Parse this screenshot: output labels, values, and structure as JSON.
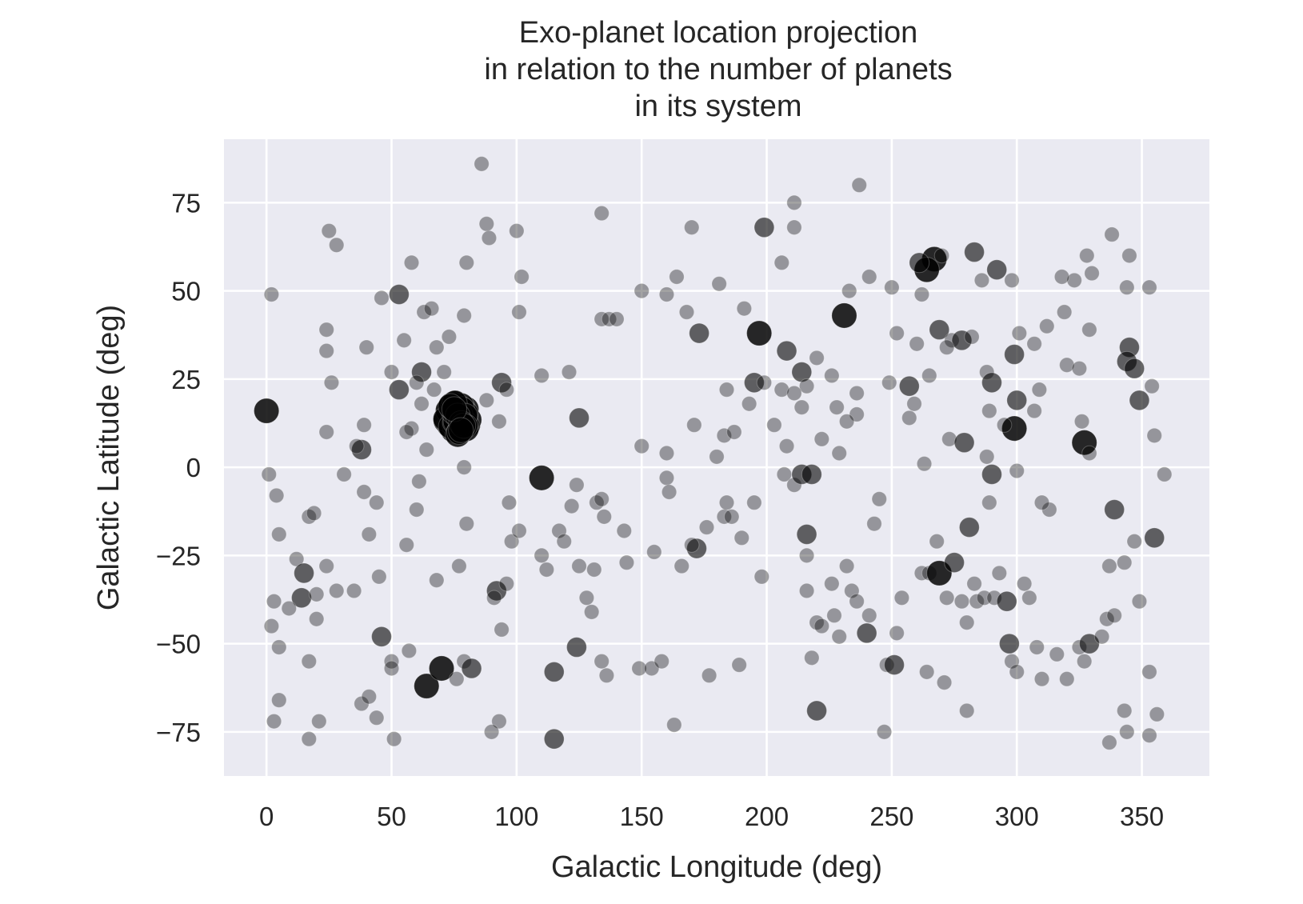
{
  "chart_data": {
    "type": "scatter",
    "title_lines": [
      "Exo-planet location projection",
      "in relation to the number of planets",
      "in its system"
    ],
    "xlabel": "Galactic Longitude (deg)",
    "ylabel": "Galactic Latitude (deg)",
    "xlim": [
      -17,
      377
    ],
    "ylim": [
      -87.5,
      93
    ],
    "xticks": [
      0,
      50,
      100,
      150,
      200,
      250,
      300,
      350
    ],
    "xtick_labels": [
      "0",
      "50",
      "100",
      "150",
      "200",
      "250",
      "300",
      "350"
    ],
    "yticks": [
      -75,
      -50,
      -25,
      0,
      25,
      50,
      75
    ],
    "ytick_labels": [
      "−75",
      "−50",
      "−25",
      "0",
      "25",
      "50",
      "75"
    ],
    "grid": true,
    "background_color": "#eaeaf2",
    "marker_color": "#000000",
    "size_meaning": "number of planets in system (1–8)",
    "cluster": {
      "center": [
        76,
        14
      ],
      "spread": [
        5.2,
        4.8
      ],
      "count": 70,
      "size": 3
    },
    "points": [
      [
        0,
        16,
        3
      ],
      [
        86,
        86,
        1
      ],
      [
        237,
        80,
        1
      ],
      [
        211,
        75,
        1
      ],
      [
        199,
        68,
        2
      ],
      [
        211,
        68,
        1
      ],
      [
        267,
        59,
        3
      ],
      [
        264,
        56,
        3
      ],
      [
        283,
        61,
        2
      ],
      [
        292,
        56,
        2
      ],
      [
        261,
        58,
        2
      ],
      [
        270,
        60,
        1
      ],
      [
        231,
        43,
        3
      ],
      [
        197,
        38,
        3
      ],
      [
        173,
        38,
        2
      ],
      [
        53,
        49,
        2
      ],
      [
        2,
        49,
        1
      ],
      [
        25,
        67,
        1
      ],
      [
        28,
        63,
        1
      ],
      [
        88,
        69,
        1
      ],
      [
        89,
        65,
        1
      ],
      [
        100,
        67,
        1
      ],
      [
        134,
        72,
        1
      ],
      [
        58,
        58,
        1
      ],
      [
        80,
        58,
        1
      ],
      [
        102,
        54,
        1
      ],
      [
        164,
        54,
        1
      ],
      [
        170,
        68,
        1
      ],
      [
        206,
        58,
        1
      ],
      [
        233,
        50,
        1
      ],
      [
        250,
        51,
        1
      ],
      [
        262,
        49,
        1
      ],
      [
        286,
        53,
        1
      ],
      [
        298,
        53,
        1
      ],
      [
        328,
        60,
        1
      ],
      [
        338,
        66,
        1
      ],
      [
        345,
        60,
        1
      ],
      [
        353,
        51,
        1
      ],
      [
        344,
        51,
        1
      ],
      [
        323,
        53,
        1
      ],
      [
        318,
        54,
        1
      ],
      [
        241,
        54,
        1
      ],
      [
        220,
        31,
        1
      ],
      [
        208,
        33,
        2
      ],
      [
        214,
        27,
        2
      ],
      [
        94,
        24,
        2
      ],
      [
        110,
        26,
        1
      ],
      [
        121,
        27,
        1
      ],
      [
        62,
        27,
        2
      ],
      [
        53,
        22,
        2
      ],
      [
        40,
        34,
        1
      ],
      [
        46,
        48,
        1
      ],
      [
        24,
        39,
        1
      ],
      [
        24,
        33,
        1
      ],
      [
        26,
        24,
        1
      ],
      [
        63,
        44,
        1
      ],
      [
        66,
        45,
        1
      ],
      [
        79,
        43,
        1
      ],
      [
        101,
        44,
        1
      ],
      [
        134,
        42,
        1
      ],
      [
        137,
        42,
        1
      ],
      [
        140,
        42,
        1
      ],
      [
        150,
        50,
        1
      ],
      [
        160,
        49,
        1
      ],
      [
        168,
        44,
        1
      ],
      [
        181,
        52,
        1
      ],
      [
        191,
        45,
        1
      ],
      [
        184,
        22,
        1
      ],
      [
        195,
        24,
        2
      ],
      [
        199,
        24,
        1
      ],
      [
        206,
        22,
        1
      ],
      [
        216,
        23,
        1
      ],
      [
        226,
        26,
        1
      ],
      [
        236,
        21,
        1
      ],
      [
        236,
        15,
        1
      ],
      [
        257,
        23,
        2
      ],
      [
        259,
        18,
        1
      ],
      [
        269,
        39,
        2
      ],
      [
        274,
        36,
        1
      ],
      [
        278,
        36,
        2
      ],
      [
        282,
        37,
        1
      ],
      [
        288,
        27,
        1
      ],
      [
        290,
        24,
        2
      ],
      [
        299,
        32,
        2
      ],
      [
        300,
        19,
        2
      ],
      [
        299,
        11,
        3
      ],
      [
        301,
        38,
        1
      ],
      [
        307,
        35,
        1
      ],
      [
        312,
        40,
        1
      ],
      [
        319,
        44,
        1
      ],
      [
        320,
        29,
        1
      ],
      [
        325,
        28,
        1
      ],
      [
        329,
        39,
        1
      ],
      [
        327,
        7,
        3
      ],
      [
        345,
        34,
        2
      ],
      [
        344,
        30,
        2
      ],
      [
        347,
        28,
        2
      ],
      [
        349,
        19,
        2
      ],
      [
        354,
        23,
        1
      ],
      [
        355,
        9,
        1
      ],
      [
        359,
        -2,
        1
      ],
      [
        125,
        14,
        2
      ],
      [
        110,
        -3,
        3
      ],
      [
        62,
        18,
        1
      ],
      [
        58,
        11,
        1
      ],
      [
        64,
        5,
        1
      ],
      [
        38,
        5,
        2
      ],
      [
        36,
        6,
        1
      ],
      [
        24,
        10,
        1
      ],
      [
        39,
        12,
        1
      ],
      [
        1,
        -2,
        1
      ],
      [
        4,
        -8,
        1
      ],
      [
        5,
        -19,
        1
      ],
      [
        12,
        -26,
        1
      ],
      [
        15,
        -30,
        2
      ],
      [
        17,
        -14,
        1
      ],
      [
        19,
        -13,
        1
      ],
      [
        14,
        -37,
        2
      ],
      [
        20,
        -36,
        1
      ],
      [
        20,
        -43,
        1
      ],
      [
        9,
        -40,
        1
      ],
      [
        3,
        -38,
        1
      ],
      [
        2,
        -45,
        1
      ],
      [
        5,
        -51,
        1
      ],
      [
        5,
        -66,
        1
      ],
      [
        3,
        -72,
        1
      ],
      [
        17,
        -55,
        1
      ],
      [
        21,
        -72,
        1
      ],
      [
        17,
        -77,
        1
      ],
      [
        39,
        -7,
        1
      ],
      [
        41,
        -19,
        1
      ],
      [
        44,
        -10,
        1
      ],
      [
        46,
        -48,
        2
      ],
      [
        50,
        -55,
        1
      ],
      [
        45,
        -31,
        1
      ],
      [
        38,
        -67,
        1
      ],
      [
        41,
        -65,
        1
      ],
      [
        44,
        -71,
        1
      ],
      [
        50,
        -57,
        1
      ],
      [
        51,
        -77,
        1
      ],
      [
        56,
        -22,
        1
      ],
      [
        60,
        -12,
        1
      ],
      [
        61,
        -4,
        1
      ],
      [
        57,
        -52,
        1
      ],
      [
        64,
        -62,
        3
      ],
      [
        70,
        -57,
        3
      ],
      [
        79,
        -55,
        1
      ],
      [
        82,
        -57,
        2
      ],
      [
        76,
        -60,
        1
      ],
      [
        80,
        -16,
        1
      ],
      [
        79,
        0,
        1
      ],
      [
        77,
        -28,
        1
      ],
      [
        68,
        -32,
        1
      ],
      [
        92,
        -35,
        2
      ],
      [
        94,
        -46,
        1
      ],
      [
        97,
        -10,
        1
      ],
      [
        98,
        -21,
        1
      ],
      [
        101,
        -18,
        1
      ],
      [
        96,
        -33,
        1
      ],
      [
        91,
        -37,
        1
      ],
      [
        93,
        -72,
        1
      ],
      [
        90,
        -75,
        1
      ],
      [
        110,
        -25,
        1
      ],
      [
        115,
        -58,
        2
      ],
      [
        115,
        -77,
        2
      ],
      [
        112,
        -29,
        1
      ],
      [
        117,
        -18,
        1
      ],
      [
        119,
        -21,
        1
      ],
      [
        122,
        -11,
        1
      ],
      [
        124,
        -5,
        1
      ],
      [
        124,
        -51,
        2
      ],
      [
        125,
        -28,
        1
      ],
      [
        128,
        -37,
        1
      ],
      [
        130,
        -41,
        1
      ],
      [
        131,
        -29,
        1
      ],
      [
        132,
        -10,
        1
      ],
      [
        134,
        -9,
        1
      ],
      [
        135,
        -14,
        1
      ],
      [
        134,
        -55,
        1
      ],
      [
        136,
        -59,
        1
      ],
      [
        144,
        -27,
        1
      ],
      [
        143,
        -18,
        1
      ],
      [
        149,
        -57,
        1
      ],
      [
        154,
        -57,
        1
      ],
      [
        155,
        -24,
        1
      ],
      [
        160,
        -3,
        1
      ],
      [
        161,
        -7,
        1
      ],
      [
        158,
        -55,
        1
      ],
      [
        163,
        -73,
        1
      ],
      [
        166,
        -28,
        1
      ],
      [
        172,
        -23,
        2
      ],
      [
        176,
        -17,
        1
      ],
      [
        170,
        -22,
        1
      ],
      [
        177,
        -59,
        1
      ],
      [
        183,
        -14,
        1
      ],
      [
        184,
        -10,
        1
      ],
      [
        186,
        -14,
        1
      ],
      [
        189,
        -56,
        1
      ],
      [
        190,
        -20,
        1
      ],
      [
        195,
        -10,
        1
      ],
      [
        198,
        -31,
        1
      ],
      [
        207,
        -2,
        1
      ],
      [
        211,
        -5,
        1
      ],
      [
        214,
        -2,
        2
      ],
      [
        218,
        -2,
        2
      ],
      [
        216,
        -19,
        2
      ],
      [
        216,
        -25,
        1
      ],
      [
        216,
        -35,
        1
      ],
      [
        218,
        -54,
        1
      ],
      [
        220,
        -44,
        1
      ],
      [
        220,
        -69,
        2
      ],
      [
        222,
        -45,
        1
      ],
      [
        226,
        -33,
        1
      ],
      [
        227,
        -42,
        1
      ],
      [
        229,
        -48,
        1
      ],
      [
        232,
        -28,
        1
      ],
      [
        234,
        -35,
        1
      ],
      [
        236,
        -38,
        1
      ],
      [
        240,
        -47,
        2
      ],
      [
        241,
        -42,
        1
      ],
      [
        243,
        -16,
        1
      ],
      [
        245,
        -9,
        1
      ],
      [
        248,
        -56,
        1
      ],
      [
        251,
        -56,
        2
      ],
      [
        247,
        -75,
        1
      ],
      [
        252,
        -47,
        1
      ],
      [
        254,
        -37,
        1
      ],
      [
        262,
        -30,
        1
      ],
      [
        265,
        -30,
        1
      ],
      [
        269,
        -30,
        3
      ],
      [
        272,
        -37,
        1
      ],
      [
        275,
        -27,
        2
      ],
      [
        278,
        -38,
        1
      ],
      [
        280,
        -44,
        1
      ],
      [
        281,
        -17,
        2
      ],
      [
        283,
        -33,
        1
      ],
      [
        284,
        -38,
        1
      ],
      [
        287,
        -37,
        1
      ],
      [
        291,
        -37,
        1
      ],
      [
        293,
        -30,
        1
      ],
      [
        296,
        -38,
        2
      ],
      [
        297,
        -50,
        2
      ],
      [
        298,
        -55,
        1
      ],
      [
        303,
        -33,
        1
      ],
      [
        305,
        -37,
        1
      ],
      [
        308,
        -51,
        1
      ],
      [
        310,
        -60,
        1
      ],
      [
        316,
        -53,
        1
      ],
      [
        320,
        -60,
        1
      ],
      [
        325,
        -51,
        1
      ],
      [
        327,
        -55,
        1
      ],
      [
        329,
        -50,
        2
      ],
      [
        334,
        -48,
        1
      ],
      [
        336,
        -43,
        1
      ],
      [
        339,
        -42,
        1
      ],
      [
        337,
        -28,
        1
      ],
      [
        339,
        -12,
        2
      ],
      [
        343,
        -27,
        1
      ],
      [
        347,
        -21,
        1
      ],
      [
        349,
        -38,
        1
      ],
      [
        355,
        -20,
        2
      ],
      [
        353,
        -58,
        1
      ],
      [
        353,
        -76,
        1
      ],
      [
        356,
        -70,
        1
      ],
      [
        344,
        -75,
        1
      ],
      [
        343,
        -69,
        1
      ],
      [
        337,
        -78,
        1
      ],
      [
        280,
        -69,
        1
      ],
      [
        271,
        -61,
        1
      ],
      [
        264,
        -58,
        1
      ],
      [
        268,
        -21,
        1
      ],
      [
        273,
        8,
        1
      ],
      [
        288,
        3,
        1
      ],
      [
        290,
        -2,
        2
      ],
      [
        289,
        -10,
        1
      ],
      [
        279,
        7,
        2
      ],
      [
        257,
        14,
        1
      ],
      [
        263,
        1,
        1
      ],
      [
        265,
        26,
        1
      ],
      [
        260,
        35,
        1
      ],
      [
        252,
        38,
        1
      ],
      [
        249,
        24,
        1
      ],
      [
        272,
        34,
        1
      ],
      [
        289,
        16,
        1
      ],
      [
        295,
        12,
        1
      ],
      [
        309,
        22,
        1
      ],
      [
        307,
        16,
        1
      ],
      [
        313,
        -12,
        1
      ],
      [
        300,
        -58,
        1
      ],
      [
        300,
        -1,
        1
      ],
      [
        310,
        -10,
        1
      ],
      [
        326,
        13,
        1
      ],
      [
        329,
        4,
        1
      ],
      [
        330,
        55,
        1
      ],
      [
        229,
        4,
        1
      ],
      [
        232,
        13,
        1
      ],
      [
        228,
        17,
        1
      ],
      [
        222,
        8,
        1
      ],
      [
        211,
        21,
        1
      ],
      [
        208,
        6,
        1
      ],
      [
        180,
        3,
        1
      ],
      [
        183,
        9,
        1
      ],
      [
        187,
        10,
        1
      ],
      [
        193,
        18,
        1
      ],
      [
        203,
        12,
        1
      ],
      [
        214,
        17,
        1
      ],
      [
        160,
        4,
        1
      ],
      [
        150,
        6,
        1
      ],
      [
        171,
        12,
        1
      ],
      [
        88,
        19,
        1
      ],
      [
        93,
        13,
        1
      ],
      [
        96,
        22,
        1
      ],
      [
        68,
        34,
        1
      ],
      [
        73,
        37,
        1
      ],
      [
        71,
        27,
        1
      ],
      [
        55,
        36,
        1
      ],
      [
        56,
        10,
        1
      ],
      [
        50,
        27,
        1
      ],
      [
        60,
        24,
        1
      ],
      [
        67,
        22,
        1
      ],
      [
        35,
        -35,
        1
      ],
      [
        31,
        -2,
        1
      ],
      [
        28,
        -35,
        1
      ],
      [
        24,
        -28,
        1
      ]
    ]
  }
}
